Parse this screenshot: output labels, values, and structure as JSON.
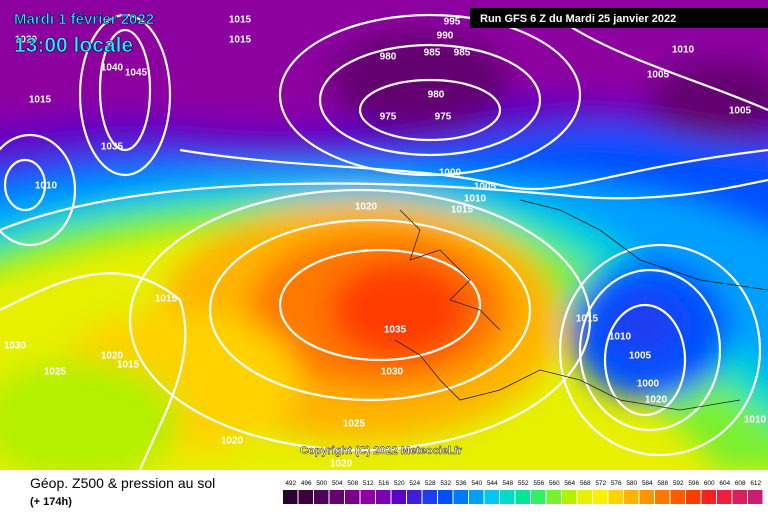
{
  "header": {
    "date": "Mardi 1 février 2022",
    "time": "13:00 locale",
    "run": "Run GFS 6 Z du Mardi 25 janvier 2022"
  },
  "copyright": "Copyright (C) 2022 Meteociel.fr",
  "footer": {
    "title": "Géop. Z500 & pression au sol",
    "lead": "(+ 174h)"
  },
  "legend": {
    "labels": [
      "492",
      "496",
      "500",
      "504",
      "508",
      "512",
      "516",
      "520",
      "524",
      "528",
      "532",
      "536",
      "540",
      "544",
      "548",
      "552",
      "556",
      "560",
      "564",
      "568",
      "572",
      "576",
      "580",
      "584",
      "588",
      "592",
      "596",
      "600",
      "604",
      "608",
      "612"
    ],
    "colors": [
      "#2a0030",
      "#3c003c",
      "#50005a",
      "#640070",
      "#780088",
      "#8c00a0",
      "#7a00b4",
      "#5a00c8",
      "#3c1edc",
      "#1e3cf0",
      "#0050ff",
      "#0078ff",
      "#00a0ff",
      "#00c8f0",
      "#00dcc8",
      "#00e696",
      "#32f064",
      "#78f032",
      "#b4f000",
      "#e6f000",
      "#fff000",
      "#ffd200",
      "#ffb400",
      "#ff9600",
      "#ff7800",
      "#ff5a00",
      "#ff3c00",
      "#ff1e1e",
      "#f01e3c",
      "#dc1e5a",
      "#c81e78"
    ]
  },
  "isobar_labels": [
    "1015",
    "1015",
    "995",
    "990",
    "985",
    "985",
    "980",
    "980",
    "975",
    "975",
    "1010",
    "1005",
    "1005",
    "1020",
    "1045",
    "1040",
    "1035",
    "1015",
    "1010",
    "1000",
    "1005",
    "1010",
    "1015",
    "1020",
    "1015",
    "1030",
    "1020",
    "1015",
    "1025",
    "1035",
    "1030",
    "1025",
    "1020",
    "1020",
    "1015",
    "1010",
    "1005",
    "1000",
    "1020",
    "1010"
  ]
}
